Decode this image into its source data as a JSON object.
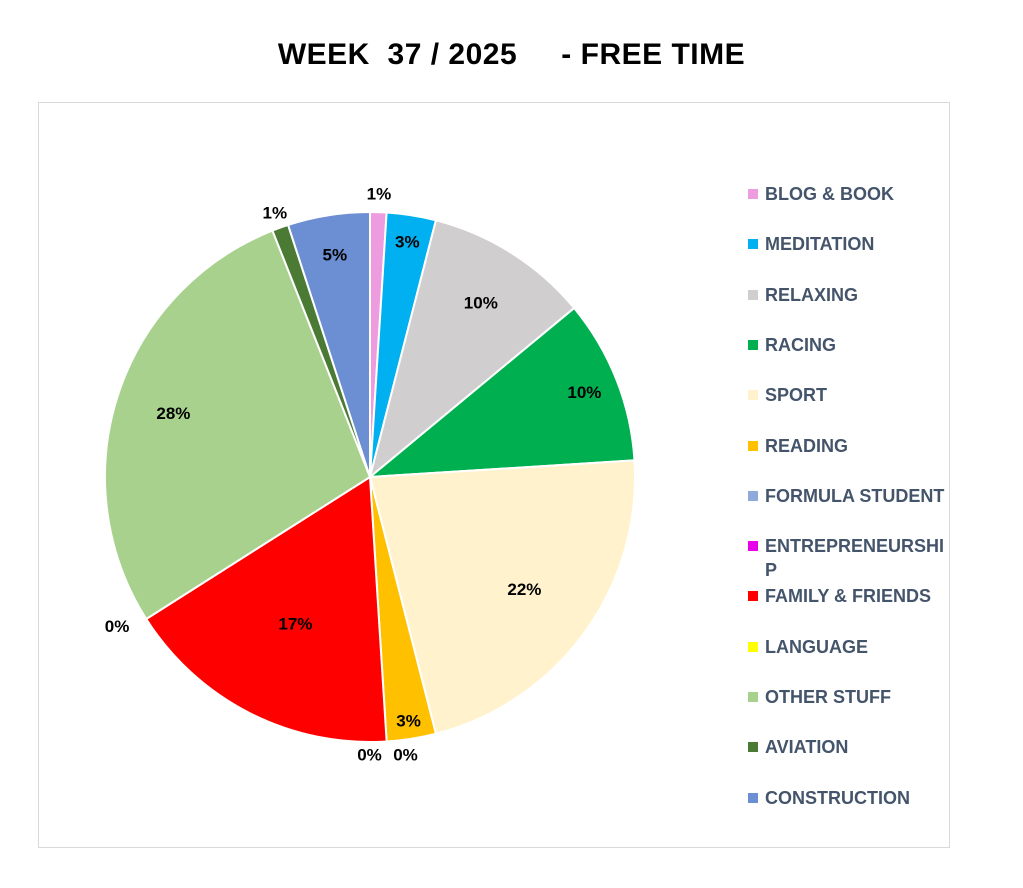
{
  "chart_data": {
    "type": "pie",
    "title": "WEEK  37 / 2025     - FREE TIME",
    "legend_position": "right",
    "slices": [
      {
        "name": "BLOG & BOOK",
        "value": 1,
        "label": "1%",
        "color": "#ee9ce0"
      },
      {
        "name": "MEDITATION",
        "value": 3,
        "label": "3%",
        "color": "#00b0f0"
      },
      {
        "name": "RELAXING",
        "value": 10,
        "label": "10%",
        "color": "#d0cece"
      },
      {
        "name": "RACING",
        "value": 10,
        "label": "10%",
        "color": "#00b050"
      },
      {
        "name": "SPORT",
        "value": 22,
        "label": "22%",
        "color": "#fff2cc"
      },
      {
        "name": "READING",
        "value": 3,
        "label": "3%",
        "color": "#ffc000"
      },
      {
        "name": "FORMULA STUDENT",
        "value": 0,
        "label": "0%",
        "color": "#8eaadb"
      },
      {
        "name": "ENTREPRENEURSHIP",
        "value": 0,
        "label": "0%",
        "color": "#e800e8"
      },
      {
        "name": "FAMILY & FRIENDS",
        "value": 17,
        "label": "17%",
        "color": "#ff0000"
      },
      {
        "name": "LANGUAGE",
        "value": 0,
        "label": "0%",
        "color": "#ffff00"
      },
      {
        "name": "OTHER STUFF",
        "value": 28,
        "label": "28%",
        "color": "#a9d18e"
      },
      {
        "name": "AVIATION",
        "value": 1,
        "label": "1%",
        "color": "#4a7a34"
      },
      {
        "name": "CONSTRUCTION",
        "value": 5,
        "label": "5%",
        "color": "#6c8ed3"
      }
    ]
  }
}
